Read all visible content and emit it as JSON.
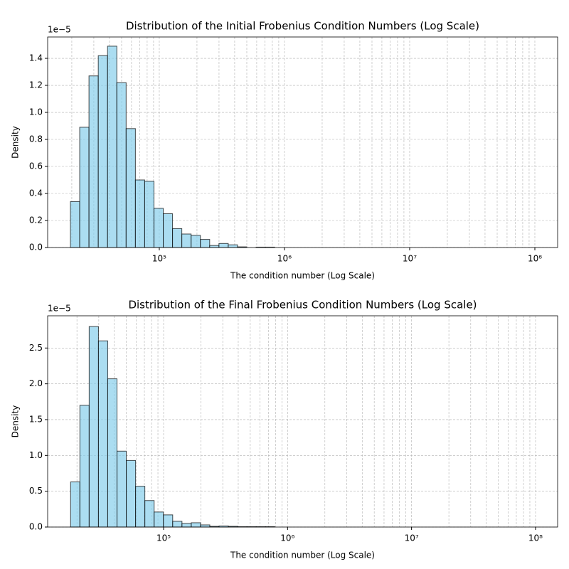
{
  "chart_data": [
    {
      "type": "histogram",
      "title": "Distribution of the Initial Frobenius Condition Numbers (Log Scale)",
      "xlabel": "The condition number (Log Scale)",
      "ylabel": "Density",
      "y_offset_label": "1e−5",
      "xscale": "log",
      "grid": true,
      "minor_grid": true,
      "color": "#87ceeb",
      "edgecolor": "#000000",
      "alpha": 0.7,
      "bins": [
        19500,
        23130,
        27440,
        32550,
        38610,
        45800,
        54330,
        64440,
        76440,
        90680,
        107560,
        127590,
        151350,
        179530,
        212960,
        252610,
        299650,
        355440,
        421620,
        500130,
        593240,
        703710,
        834740,
        990170,
        1174540,
        1393240,
        1652660,
        1960380,
        2325400,
        2758390,
        3272000,
        3881270,
        4603960,
        5461220,
        6478100,
        7684330,
        9115150,
        10812400,
        12825700,
        15213800,
        18046600,
        21406900,
        25392900,
        30121000,
        35729600,
        42382400,
        50274000,
        59635200,
        70739300,
        83910700,
        99534800
      ],
      "values": [
        0.34,
        0.89,
        1.27,
        1.42,
        1.49,
        1.22,
        0.88,
        0.5,
        0.49,
        0.29,
        0.25,
        0.14,
        0.1,
        0.09,
        0.06,
        0.015,
        0.03,
        0.02,
        0.005,
        0,
        0.003,
        0.003,
        0,
        0,
        0,
        0,
        0,
        0,
        0,
        0,
        0,
        0,
        0,
        0,
        0,
        0,
        0,
        0,
        0,
        0,
        0,
        0,
        0,
        0,
        0,
        0,
        0,
        0,
        0,
        0
      ],
      "xlim": [
        12830,
        152000000
      ],
      "xticks": [
        {
          "value": 100000,
          "label": "10⁵"
        },
        {
          "value": 1000000,
          "label": "10⁶"
        },
        {
          "value": 10000000,
          "label": "10⁷"
        },
        {
          "value": 100000000,
          "label": "10⁸"
        }
      ],
      "ylim": [
        0,
        1.558
      ],
      "yticks": [
        {
          "value": 0,
          "label": "0.0"
        },
        0.2,
        0.4,
        0.6,
        0.8,
        {
          "value": 1,
          "label": "1.0"
        },
        1.2,
        1.4
      ]
    },
    {
      "type": "histogram",
      "title": "Distribution of the Final Frobenius Condition Numbers (Log Scale)",
      "xlabel": "The condition number (Log Scale)",
      "ylabel": "Density",
      "y_offset_label": "1e−5",
      "xscale": "log",
      "grid": true,
      "minor_grid": true,
      "color": "#87ceeb",
      "edgecolor": "#000000",
      "alpha": 0.7,
      "bins": [
        17780,
        21125,
        25099,
        29820,
        35430,
        42094,
        50012,
        59419,
        70596,
        83875,
        99652,
        118400,
        140670,
        167130,
        198570,
        235920,
        280300,
        333020,
        395660,
        470080,
        558510,
        663560,
        788380,
        936680,
        1112860,
        1322200,
        1570900,
        1866400,
        2217400,
        2634500,
        3130100,
        3718800,
        4418300,
        5249400,
        6236800,
        7409900,
        8803700,
        10459700,
        12427100,
        14764600,
        17541800,
        20841400,
        24761600,
        29419200,
        34952900,
        41527500,
        49338700,
        58619200,
        69645300,
        82745100,
        98309400
      ],
      "values": [
        0.63,
        1.7,
        2.8,
        2.6,
        2.07,
        1.06,
        0.93,
        0.57,
        0.37,
        0.21,
        0.17,
        0.08,
        0.05,
        0.06,
        0.03,
        0.01,
        0.015,
        0.01,
        0.005,
        0.005,
        0.005,
        0.005,
        0,
        0,
        0,
        0,
        0,
        0,
        0,
        0,
        0,
        0,
        0,
        0,
        0,
        0,
        0,
        0,
        0,
        0,
        0,
        0,
        0,
        0,
        0,
        0,
        0,
        0,
        0,
        0
      ],
      "xlim": [
        11610,
        150700000
      ],
      "xticks": [
        {
          "value": 100000,
          "label": "10⁵"
        },
        {
          "value": 1000000,
          "label": "10⁶"
        },
        {
          "value": 10000000,
          "label": "10⁷"
        },
        {
          "value": 100000000,
          "label": "10⁸"
        }
      ],
      "ylim": [
        0,
        2.95
      ],
      "yticks": [
        {
          "value": 0,
          "label": "0.0"
        },
        0.5,
        {
          "value": 1,
          "label": "1.0"
        },
        1.5,
        {
          "value": 2,
          "label": "2.0"
        },
        2.5
      ]
    }
  ]
}
